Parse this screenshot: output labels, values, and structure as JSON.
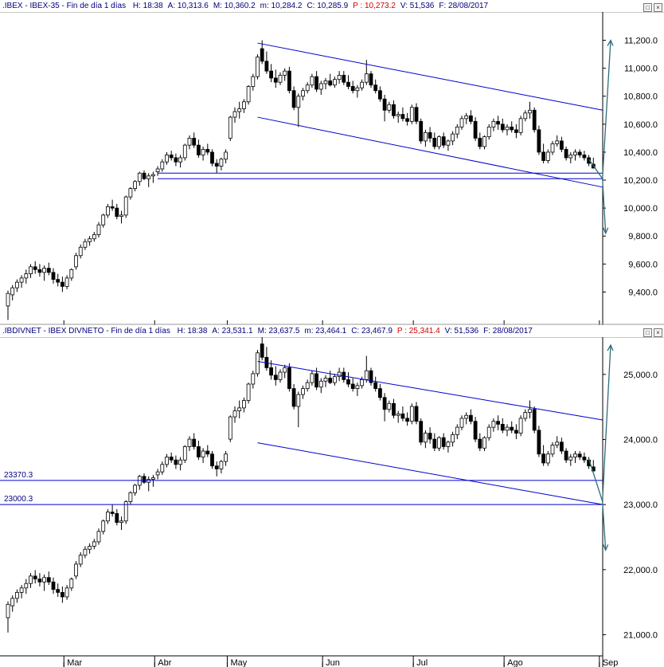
{
  "chart_data": [
    {
      "type": "candlestick",
      "header": {
        "symbol": ".IBEX - IBEX-35 - Fin de día 1 días",
        "fields": [
          {
            "k": "H:",
            "v": "18:38"
          },
          {
            "k": "A:",
            "v": "10,313.6"
          },
          {
            "k": "M:",
            "v": "10,360.2"
          },
          {
            "k": "m:",
            "v": "10,284.2"
          },
          {
            "k": "C:",
            "v": "10,285.9"
          },
          {
            "k": "P :",
            "v": "10,273.2",
            "red": true
          },
          {
            "k": "V:",
            "v": "51,536"
          },
          {
            "k": "F:",
            "v": "28/08/2017"
          }
        ]
      },
      "yticks": [
        "11,200.0",
        "11,000.0",
        "10,800.0",
        "10,600.0",
        "10,400.0",
        "10,200.0",
        "10,000.0",
        "9,800.0",
        "9,600.0",
        "9,400.0"
      ],
      "ytick_values": [
        11200,
        11000,
        10800,
        10600,
        10400,
        10200,
        10000,
        9800,
        9600,
        9400
      ],
      "ylim": [
        9220,
        11300
      ],
      "series": [
        {
          "name": "",
          "values": [
            [
              9300,
              9410,
              9200,
              9390
            ],
            [
              9380,
              9450,
              9340,
              9430
            ],
            [
              9430,
              9490,
              9400,
              9470
            ],
            [
              9470,
              9520,
              9430,
              9500
            ],
            [
              9500,
              9560,
              9460,
              9530
            ],
            [
              9530,
              9600,
              9500,
              9580
            ],
            [
              9580,
              9620,
              9530,
              9560
            ],
            [
              9560,
              9600,
              9510,
              9540
            ],
            [
              9540,
              9590,
              9480,
              9570
            ],
            [
              9570,
              9610,
              9520,
              9540
            ],
            [
              9540,
              9570,
              9460,
              9490
            ],
            [
              9490,
              9530,
              9440,
              9470
            ],
            [
              9470,
              9510,
              9400,
              9440
            ],
            [
              9440,
              9520,
              9420,
              9500
            ],
            [
              9500,
              9570,
              9480,
              9560
            ],
            [
              9580,
              9680,
              9560,
              9660
            ],
            [
              9660,
              9740,
              9640,
              9720
            ],
            [
              9720,
              9780,
              9700,
              9760
            ],
            [
              9760,
              9800,
              9730,
              9780
            ],
            [
              9780,
              9830,
              9760,
              9810
            ],
            [
              9810,
              9900,
              9790,
              9880
            ],
            [
              9880,
              9960,
              9860,
              9950
            ],
            [
              9950,
              10030,
              9930,
              10010
            ],
            [
              10010,
              10060,
              9980,
              10000
            ],
            [
              10000,
              10030,
              9920,
              9940
            ],
            [
              9940,
              9980,
              9890,
              9950
            ],
            [
              9950,
              10090,
              9930,
              10080
            ],
            [
              10080,
              10150,
              10060,
              10140
            ],
            [
              10140,
              10200,
              10120,
              10190
            ],
            [
              10190,
              10260,
              10160,
              10250
            ],
            [
              10250,
              10270,
              10200,
              10210
            ],
            [
              10210,
              10250,
              10150,
              10230
            ],
            [
              10230,
              10260,
              10180,
              10240
            ],
            [
              10260,
              10300,
              10230,
              10280
            ],
            [
              10280,
              10350,
              10260,
              10330
            ],
            [
              10330,
              10400,
              10310,
              10380
            ],
            [
              10380,
              10410,
              10340,
              10360
            ],
            [
              10360,
              10390,
              10300,
              10330
            ],
            [
              10330,
              10380,
              10290,
              10360
            ],
            [
              10360,
              10460,
              10340,
              10450
            ],
            [
              10450,
              10520,
              10420,
              10500
            ],
            [
              10500,
              10540,
              10430,
              10450
            ],
            [
              10450,
              10490,
              10360,
              10380
            ],
            [
              10380,
              10440,
              10340,
              10420
            ],
            [
              10420,
              10460,
              10380,
              10400
            ],
            [
              10400,
              10420,
              10300,
              10320
            ],
            [
              10320,
              10350,
              10250,
              10300
            ],
            [
              10300,
              10360,
              10270,
              10350
            ],
            [
              10350,
              10420,
              10320,
              10400
            ],
            [
              10500,
              10660,
              10480,
              10650
            ],
            [
              10650,
              10720,
              10610,
              10690
            ],
            [
              10690,
              10760,
              10640,
              10710
            ],
            [
              10710,
              10780,
              10680,
              10760
            ],
            [
              10760,
              10880,
              10740,
              10870
            ],
            [
              10870,
              10960,
              10840,
              10940
            ],
            [
              10940,
              11100,
              10920,
              11080
            ],
            [
              11140,
              11200,
              11030,
              11050
            ],
            [
              11050,
              11120,
              10960,
              10980
            ],
            [
              10980,
              11030,
              10900,
              10930
            ],
            [
              10930,
              10990,
              10860,
              10900
            ],
            [
              10900,
              10970,
              10880,
              10950
            ],
            [
              10950,
              11000,
              10910,
              10980
            ],
            [
              10980,
              11010,
              10820,
              10840
            ],
            [
              10840,
              10870,
              10700,
              10720
            ],
            [
              10720,
              10820,
              10580,
              10800
            ],
            [
              10800,
              10860,
              10770,
              10840
            ],
            [
              10840,
              10900,
              10820,
              10880
            ],
            [
              10880,
              10960,
              10860,
              10940
            ],
            [
              10940,
              10980,
              10830,
              10850
            ],
            [
              10850,
              10910,
              10810,
              10890
            ],
            [
              10890,
              10930,
              10850,
              10910
            ],
            [
              10910,
              10960,
              10870,
              10880
            ],
            [
              10880,
              10940,
              10860,
              10920
            ],
            [
              10920,
              10980,
              10890,
              10950
            ],
            [
              10950,
              10980,
              10880,
              10900
            ],
            [
              10900,
              10950,
              10850,
              10870
            ],
            [
              10870,
              10910,
              10820,
              10840
            ],
            [
              10840,
              10880,
              10790,
              10860
            ],
            [
              10860,
              10920,
              10840,
              10900
            ],
            [
              10900,
              11060,
              10880,
              10960
            ],
            [
              10960,
              10980,
              10860,
              10880
            ],
            [
              10880,
              10920,
              10820,
              10840
            ],
            [
              10840,
              10870,
              10760,
              10780
            ],
            [
              10780,
              10810,
              10620,
              10700
            ],
            [
              10700,
              10760,
              10680,
              10740
            ],
            [
              10740,
              10770,
              10640,
              10660
            ],
            [
              10660,
              10690,
              10610,
              10670
            ],
            [
              10670,
              10720,
              10620,
              10640
            ],
            [
              10640,
              10680,
              10590,
              10620
            ],
            [
              10620,
              10740,
              10600,
              10720
            ],
            [
              10720,
              10750,
              10600,
              10620
            ],
            [
              10620,
              10640,
              10460,
              10480
            ],
            [
              10480,
              10560,
              10440,
              10540
            ],
            [
              10540,
              10580,
              10470,
              10500
            ],
            [
              10500,
              10540,
              10420,
              10440
            ],
            [
              10440,
              10520,
              10420,
              10510
            ],
            [
              10510,
              10540,
              10430,
              10450
            ],
            [
              10450,
              10490,
              10410,
              10480
            ],
            [
              10480,
              10550,
              10450,
              10530
            ],
            [
              10530,
              10600,
              10500,
              10580
            ],
            [
              10580,
              10660,
              10560,
              10640
            ],
            [
              10640,
              10680,
              10600,
              10660
            ],
            [
              10660,
              10700,
              10600,
              10620
            ],
            [
              10620,
              10650,
              10480,
              10500
            ],
            [
              10500,
              10540,
              10420,
              10440
            ],
            [
              10440,
              10520,
              10420,
              10510
            ],
            [
              10510,
              10600,
              10490,
              10580
            ],
            [
              10580,
              10640,
              10550,
              10620
            ],
            [
              10620,
              10660,
              10560,
              10600
            ],
            [
              10600,
              10640,
              10540,
              10560
            ],
            [
              10560,
              10600,
              10520,
              10580
            ],
            [
              10580,
              10620,
              10540,
              10560
            ],
            [
              10560,
              10600,
              10500,
              10540
            ],
            [
              10540,
              10660,
              10520,
              10640
            ],
            [
              10640,
              10700,
              10620,
              10680
            ],
            [
              10680,
              10760,
              10640,
              10700
            ],
            [
              10700,
              10720,
              10540,
              10560
            ],
            [
              10560,
              10590,
              10380,
              10400
            ],
            [
              10400,
              10460,
              10320,
              10340
            ],
            [
              10340,
              10420,
              10320,
              10400
            ],
            [
              10400,
              10480,
              10380,
              10460
            ],
            [
              10460,
              10520,
              10440,
              10480
            ],
            [
              10480,
              10510,
              10400,
              10420
            ],
            [
              10420,
              10440,
              10340,
              10360
            ],
            [
              10360,
              10400,
              10320,
              10380
            ],
            [
              10380,
              10420,
              10340,
              10400
            ],
            [
              10400,
              10420,
              10360,
              10380
            ],
            [
              10380,
              10410,
              10340,
              10360
            ],
            [
              10360,
              10380,
              10300,
              10320
            ],
            [
              10313.6,
              10360.2,
              10284.2,
              10285.9
            ]
          ]
        }
      ],
      "channel": {
        "upper": [
          [
            11180,
            10700
          ]
        ],
        "lower": [
          [
            10650,
            10150
          ]
        ]
      },
      "hlines": [
        10250,
        10210
      ],
      "projection": {
        "start": 10350,
        "bottom": 10210,
        "up_target": 11200,
        "down_target": 9820
      }
    },
    {
      "type": "candlestick",
      "header": {
        "symbol": ".IBDIVNET - IBEX DIVNETO - Fin de día 1 días",
        "fields": [
          {
            "k": "H:",
            "v": "18:38"
          },
          {
            "k": "A:",
            "v": "23,531.1"
          },
          {
            "k": "M:",
            "v": "23,637.5"
          },
          {
            "k": "m:",
            "v": "23,464.1"
          },
          {
            "k": "C:",
            "v": "23,467.9"
          },
          {
            "k": "P :",
            "v": "25,341.4",
            "red": true
          },
          {
            "k": "V:",
            "v": "51,536"
          },
          {
            "k": "F:",
            "v": "28/08/2017"
          }
        ]
      },
      "yticks": [
        "25,000.0",
        "24,000.0",
        "23,000.0",
        "22,000.0",
        "21,000.0"
      ],
      "ytick_values": [
        25000,
        24000,
        23000,
        22000,
        21000
      ],
      "ylim": [
        20700,
        25500
      ],
      "level_labels": [
        "23370.3",
        "23000.3"
      ],
      "hlines": [
        23370.3,
        23000.3
      ],
      "channel": {
        "upper": [
          [
            25200,
            24300
          ]
        ],
        "lower": [
          [
            23950,
            23000
          ]
        ]
      },
      "projection": {
        "start": 23700,
        "bottom": 23050,
        "up_target": 25450,
        "down_target": 22300
      }
    }
  ],
  "xaxis": {
    "labels": [
      "Mar",
      "Abr",
      "May",
      "Jun",
      "Jul",
      "Ago",
      "Sep"
    ]
  }
}
